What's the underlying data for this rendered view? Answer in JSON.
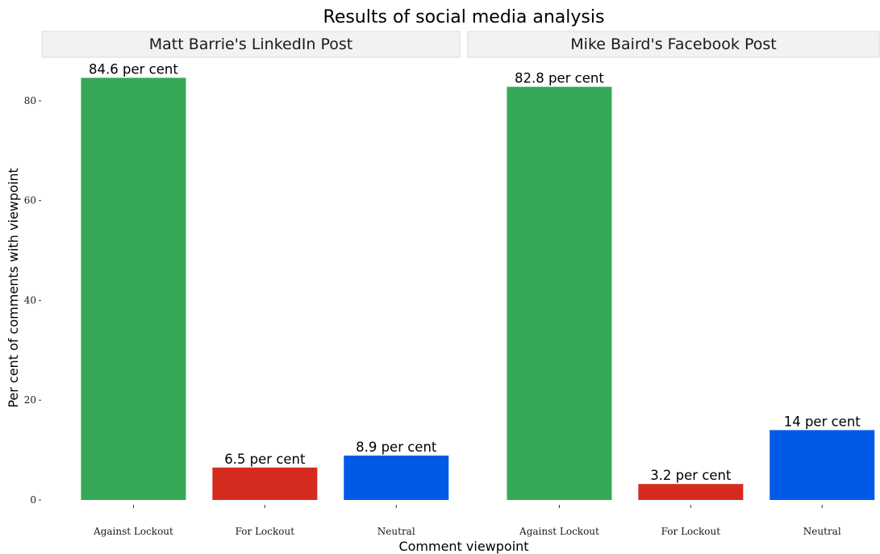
{
  "chart_data": {
    "type": "bar",
    "title": "Results of social media analysis",
    "xlabel": "Comment viewpoint",
    "ylabel": "Per cent of comments with viewpoint",
    "ylim": [
      0,
      88.5
    ],
    "yticks": [
      0,
      20,
      40,
      60,
      80
    ],
    "grid": false,
    "legend": "none",
    "categories": [
      "Against Lockout",
      "For Lockout",
      "Neutral"
    ],
    "colors": {
      "Against Lockout": "#35a856",
      "For Lockout": "#d52b1f",
      "Neutral": "#005ae8"
    },
    "panels": [
      {
        "name": "Matt Barrie's LinkedIn Post",
        "values": [
          84.6,
          6.5,
          8.9
        ],
        "labels": [
          "84.6 per cent",
          "6.5 per cent",
          "8.9 per cent"
        ]
      },
      {
        "name": "Mike Baird's Facebook Post",
        "values": [
          82.8,
          3.2,
          14
        ],
        "labels": [
          "82.8 per cent",
          "3.2 per cent",
          "14 per cent"
        ]
      }
    ]
  }
}
